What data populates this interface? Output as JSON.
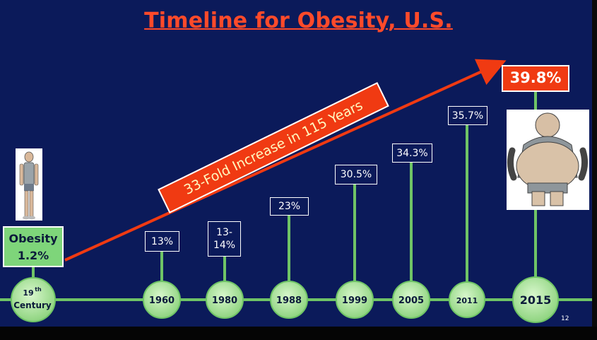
{
  "title": "Timeline for Obesity, U.S.",
  "banner": "33-Fold Increase in 115 Years",
  "start": {
    "label": "Obesity",
    "value": "1.2%"
  },
  "end": {
    "value": "39.8%"
  },
  "nodes": [
    {
      "year": "19th Century",
      "sup_prefix": "19",
      "sup": "th",
      "second_line": "Century"
    },
    {
      "year": "1960",
      "value": "13%"
    },
    {
      "year": "1980",
      "value": "13-14%",
      "value_line1": "13-",
      "value_line2": "14%"
    },
    {
      "year": "1988",
      "value": "23%"
    },
    {
      "year": "1999",
      "value": "30.5%"
    },
    {
      "year": "2005",
      "value": "34.3%"
    },
    {
      "year": "2011",
      "value": "35.7%"
    },
    {
      "year": "2015",
      "value": "39.8%"
    }
  ],
  "slide_number": "12",
  "colors": {
    "background": "#0b1a5a",
    "title": "#ff4a2a",
    "accent_red": "#f03a12",
    "node_green": "#a8e69a",
    "line_green": "#6fc466",
    "box_white": "#ffffff"
  },
  "icons": {
    "thin_person": "thin-person-icon",
    "obese_person": "obese-person-icon"
  }
}
